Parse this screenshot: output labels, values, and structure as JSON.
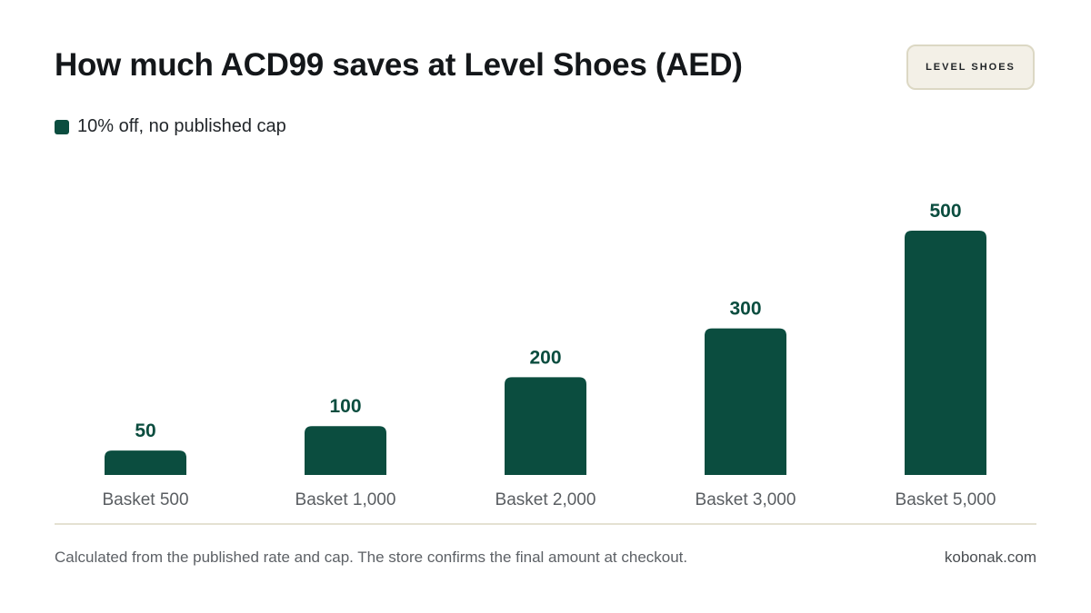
{
  "title": "How much ACD99 saves at Level Shoes (AED)",
  "brand_badge": "LEVEL SHOES",
  "footnote": "Calculated from the published rate and cap. The store confirms the final amount at checkout.",
  "source": "kobonak.com",
  "colors": {
    "bar": "#0b4d3f",
    "value_label": "#0b4d3f",
    "tick_label": "#5a5e62"
  },
  "chart_data": {
    "type": "bar",
    "title": "How much ACD99 saves at Level Shoes (AED)",
    "xlabel": "",
    "ylabel": "",
    "categories": [
      "Basket 500",
      "Basket 1,000",
      "Basket 2,000",
      "Basket 3,000",
      "Basket 5,000"
    ],
    "series": [
      {
        "name": "10% off, no published cap",
        "values": [
          50,
          100,
          200,
          300,
          500
        ],
        "labels": [
          "50",
          "100",
          "200",
          "300",
          "500"
        ]
      }
    ],
    "ylim": [
      0,
      500
    ],
    "grid": false,
    "legend_position": "top-left"
  }
}
